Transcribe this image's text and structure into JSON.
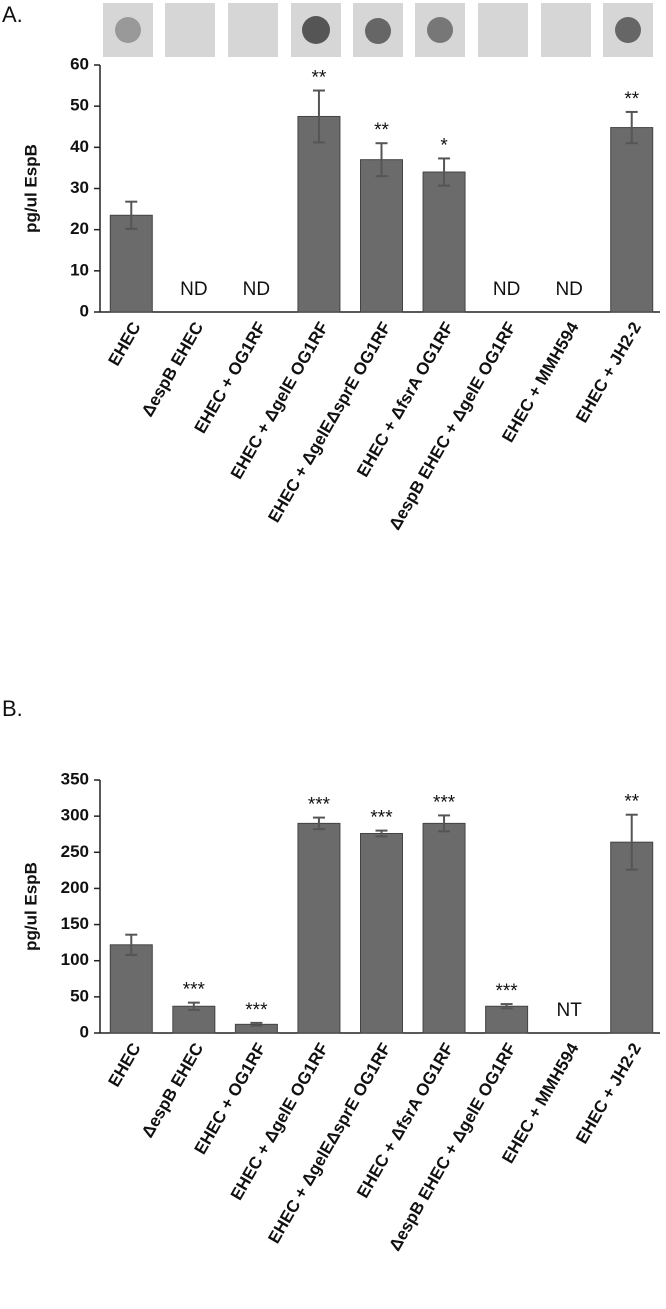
{
  "chart_data": [
    {
      "type": "bar",
      "panel_label": "A.",
      "ylabel": "pg/ul EspB",
      "categories": [
        "EHEC",
        "ΔespB EHEC",
        "EHEC + OG1RF",
        "EHEC + ΔgelE OG1RF",
        "EHEC + ΔgelEΔsprE OG1RF",
        "EHEC + ΔfsrA OG1RF",
        "ΔespB EHEC + ΔgelE OG1RF",
        "EHEC + MMH594",
        "EHEC + JH2-2"
      ],
      "values": [
        23.5,
        null,
        null,
        47.5,
        37,
        34,
        null,
        null,
        44.8
      ],
      "errors": [
        3.3,
        null,
        null,
        6.3,
        4,
        3.3,
        null,
        null,
        3.8
      ],
      "annotations": [
        null,
        "ND",
        "ND",
        "**",
        "**",
        "*",
        "ND",
        "ND",
        "**"
      ],
      "color": "#6b6b6b",
      "ylim": [
        0,
        60
      ],
      "yticks": [
        0,
        10,
        20,
        30,
        40,
        50,
        60
      ]
    },
    {
      "type": "bar",
      "panel_label": "B.",
      "ylabel": "pg/ul EspB",
      "categories": [
        "EHEC",
        "ΔespB EHEC",
        "EHEC + OG1RF",
        "EHEC + ΔgelE OG1RF",
        "EHEC + ΔgelEΔsprE OG1RF",
        "EHEC + ΔfsrA OG1RF",
        "ΔespB EHEC + ΔgelE OG1RF",
        "EHEC + MMH594",
        "EHEC + JH2-2"
      ],
      "values": [
        122,
        37,
        12,
        290,
        276,
        290,
        37,
        null,
        264
      ],
      "errors": [
        14,
        5,
        2,
        8,
        4,
        11,
        3,
        null,
        38
      ],
      "annotations": [
        null,
        "***",
        "***",
        "***",
        "***",
        "***",
        "***",
        "NT",
        "**"
      ],
      "color": "#6b6b6b",
      "ylim": [
        0,
        350
      ],
      "yticks": [
        0,
        50,
        100,
        150,
        200,
        250,
        300,
        350
      ]
    }
  ]
}
